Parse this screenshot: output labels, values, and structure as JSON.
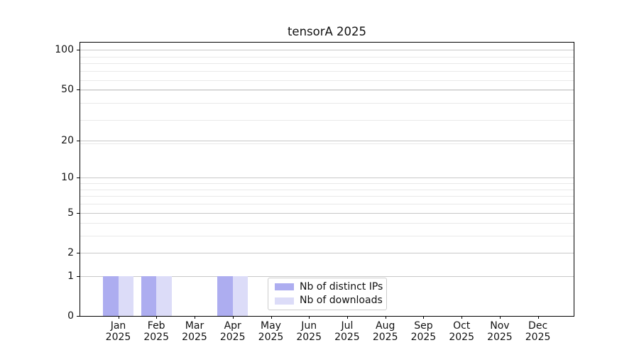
{
  "chart_data": {
    "type": "bar",
    "title": "tensorA 2025",
    "categories": [
      "Jan",
      "Feb",
      "Mar",
      "Apr",
      "May",
      "Jun",
      "Jul",
      "Aug",
      "Sep",
      "Oct",
      "Nov",
      "Dec"
    ],
    "category_year": "2025",
    "series": [
      {
        "name": "Nb of distinct IPs",
        "color": "#adadf0",
        "values": [
          1,
          1,
          0,
          1,
          0,
          0,
          0,
          0,
          0,
          0,
          0,
          0
        ]
      },
      {
        "name": "Nb of downloads",
        "color": "#dcdcf8",
        "values": [
          1,
          1,
          0,
          1,
          0,
          0,
          0,
          0,
          0,
          0,
          0,
          0
        ]
      }
    ],
    "y_axis": {
      "scale": "log10(1+y)",
      "tick_labels": [
        0,
        1,
        2,
        5,
        10,
        20,
        50,
        100
      ],
      "minor_gridlines": [
        3,
        4,
        6,
        7,
        8,
        9,
        19,
        29,
        39,
        49,
        59,
        69,
        79,
        89
      ],
      "ylim": [
        0,
        114
      ]
    },
    "legend": {
      "position": "lower center"
    },
    "grid": true
  },
  "colors": {
    "major_grid": "#c8c8c8",
    "minor_grid": "#e9e9e9",
    "spine": "#000000",
    "text": "#111111"
  }
}
